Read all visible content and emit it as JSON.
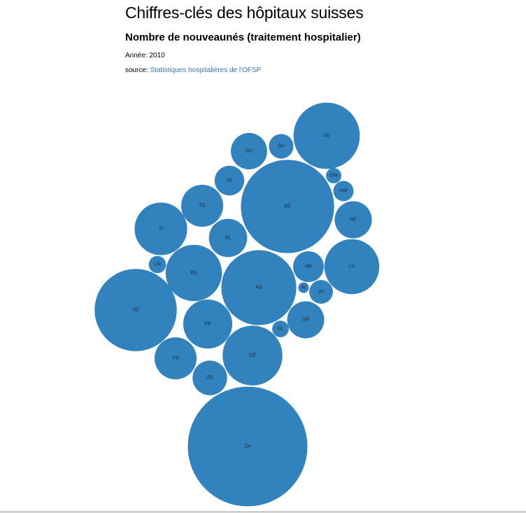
{
  "page": {
    "title": "Chiffres-clés des hôpitaux suisses",
    "subtitle": "Nombre de nouveaunés (traitement hospitalier)",
    "year_label": "Année:",
    "year_value": "2010",
    "source_label": "source:",
    "source_link_text": "Statistiques hospitalières de l'OFSP"
  },
  "chart_data": {
    "type": "bubble",
    "title": "Nombre de nouveaunés (traitement hospitalier)",
    "fill_color": "#3182bd",
    "unit_note": "values are relative counts estimated from bubble area",
    "nodes": [
      {
        "label": "ZH",
        "value": 14000
      },
      {
        "label": "BE",
        "value": 8500
      },
      {
        "label": "VD",
        "value": 6600
      },
      {
        "label": "AG",
        "value": 5500
      },
      {
        "label": "GE",
        "value": 3500
      },
      {
        "label": "SG",
        "value": 4300
      },
      {
        "label": "LU",
        "value": 2950
      },
      {
        "label": "TI",
        "value": 2700
      },
      {
        "label": "BS",
        "value": 3100
      },
      {
        "label": "FR",
        "value": 2350
      },
      {
        "label": "TG",
        "value": 1730
      },
      {
        "label": "VS",
        "value": 1730
      },
      {
        "label": "BL",
        "value": 1430
      },
      {
        "label": "SO",
        "value": 1290
      },
      {
        "label": "GR",
        "value": 1340
      },
      {
        "label": "NE",
        "value": 1350
      },
      {
        "label": "ZG",
        "value": 1170
      },
      {
        "label": "SZ",
        "value": 860
      },
      {
        "label": "AR",
        "value": 930
      },
      {
        "label": "SH",
        "value": 590
      },
      {
        "label": "JU",
        "value": 550
      },
      {
        "label": "NW",
        "value": 400
      },
      {
        "label": "UR",
        "value": 290
      },
      {
        "label": "GL",
        "value": 270
      },
      {
        "label": "OW",
        "value": 230
      },
      {
        "label": "AI",
        "value": 110
      }
    ]
  }
}
